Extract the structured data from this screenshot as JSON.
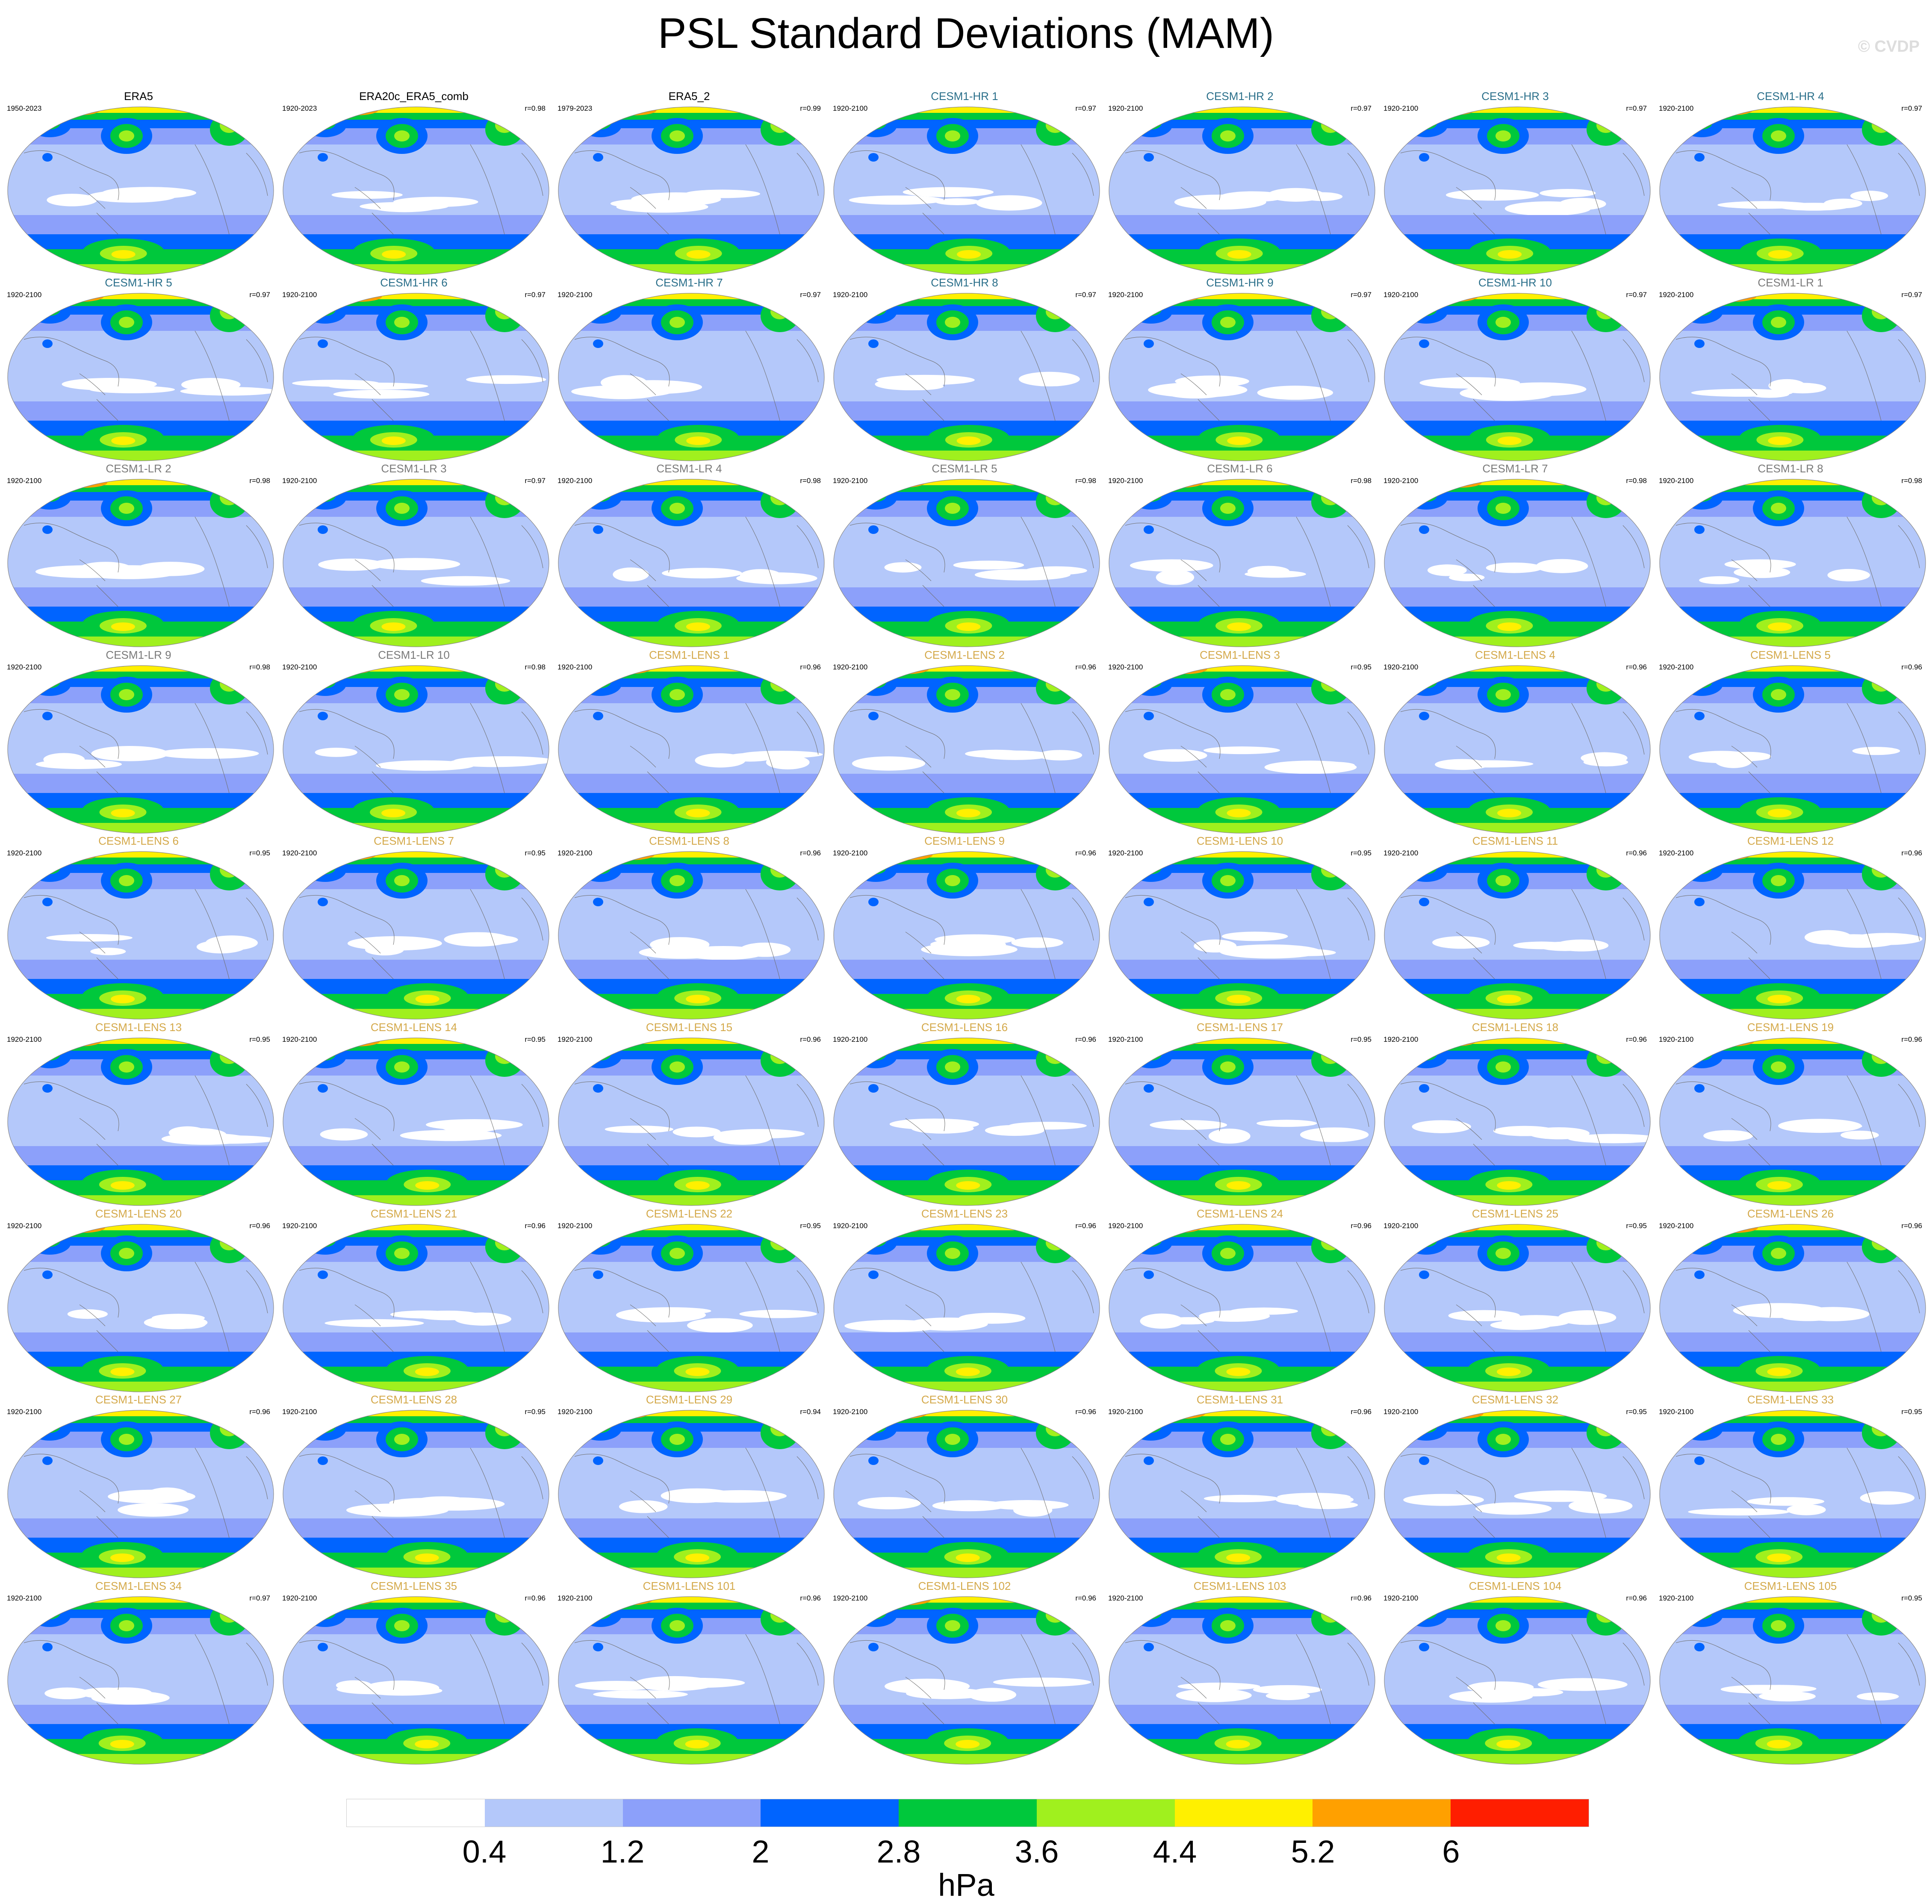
{
  "title": "PSL Standard Deviations (MAM)",
  "watermark": "© CVDP",
  "units": "hPa",
  "colorbar": {
    "colors": [
      "#ffffff",
      "#b4c8fa",
      "#8ca0fa",
      "#0064ff",
      "#00c83c",
      "#a0f01e",
      "#fff000",
      "#ffa000",
      "#ff1e00"
    ],
    "labels": [
      "0.4",
      "1.2",
      "2",
      "2.8",
      "3.6",
      "4.4",
      "5.2",
      "6"
    ]
  },
  "title_colors": {
    "obs": "#000000",
    "hr": "#2a6f8a",
    "lr": "#7a7a7a",
    "lens": "#d4a94a"
  },
  "panels": [
    {
      "name": "ERA5",
      "years": "1950-2023",
      "r": "",
      "group": "obs"
    },
    {
      "name": "ERA20c_ERA5_comb",
      "years": "1920-2023",
      "r": "r=0.98",
      "group": "obs"
    },
    {
      "name": "ERA5_2",
      "years": "1979-2023",
      "r": "r=0.99",
      "group": "obs"
    },
    {
      "name": "CESM1-HR 1",
      "years": "1920-2100",
      "r": "r=0.97",
      "group": "hr"
    },
    {
      "name": "CESM1-HR 2",
      "years": "1920-2100",
      "r": "r=0.97",
      "group": "hr"
    },
    {
      "name": "CESM1-HR 3",
      "years": "1920-2100",
      "r": "r=0.97",
      "group": "hr"
    },
    {
      "name": "CESM1-HR 4",
      "years": "1920-2100",
      "r": "r=0.97",
      "group": "hr"
    },
    {
      "name": "CESM1-HR 5",
      "years": "1920-2100",
      "r": "r=0.97",
      "group": "hr"
    },
    {
      "name": "CESM1-HR 6",
      "years": "1920-2100",
      "r": "r=0.97",
      "group": "hr"
    },
    {
      "name": "CESM1-HR 7",
      "years": "1920-2100",
      "r": "r=0.97",
      "group": "hr"
    },
    {
      "name": "CESM1-HR 8",
      "years": "1920-2100",
      "r": "r=0.97",
      "group": "hr"
    },
    {
      "name": "CESM1-HR 9",
      "years": "1920-2100",
      "r": "r=0.97",
      "group": "hr"
    },
    {
      "name": "CESM1-HR 10",
      "years": "1920-2100",
      "r": "r=0.97",
      "group": "hr"
    },
    {
      "name": "CESM1-LR 1",
      "years": "1920-2100",
      "r": "r=0.97",
      "group": "lr"
    },
    {
      "name": "CESM1-LR 2",
      "years": "1920-2100",
      "r": "r=0.98",
      "group": "lr"
    },
    {
      "name": "CESM1-LR 3",
      "years": "1920-2100",
      "r": "r=0.97",
      "group": "lr"
    },
    {
      "name": "CESM1-LR 4",
      "years": "1920-2100",
      "r": "r=0.98",
      "group": "lr"
    },
    {
      "name": "CESM1-LR 5",
      "years": "1920-2100",
      "r": "r=0.98",
      "group": "lr"
    },
    {
      "name": "CESM1-LR 6",
      "years": "1920-2100",
      "r": "r=0.98",
      "group": "lr"
    },
    {
      "name": "CESM1-LR 7",
      "years": "1920-2100",
      "r": "r=0.98",
      "group": "lr"
    },
    {
      "name": "CESM1-LR 8",
      "years": "1920-2100",
      "r": "r=0.98",
      "group": "lr"
    },
    {
      "name": "CESM1-LR 9",
      "years": "1920-2100",
      "r": "r=0.98",
      "group": "lr"
    },
    {
      "name": "CESM1-LR 10",
      "years": "1920-2100",
      "r": "r=0.98",
      "group": "lr"
    },
    {
      "name": "CESM1-LENS 1",
      "years": "1920-2100",
      "r": "r=0.96",
      "group": "lens"
    },
    {
      "name": "CESM1-LENS 2",
      "years": "1920-2100",
      "r": "r=0.96",
      "group": "lens"
    },
    {
      "name": "CESM1-LENS 3",
      "years": "1920-2100",
      "r": "r=0.95",
      "group": "lens"
    },
    {
      "name": "CESM1-LENS 4",
      "years": "1920-2100",
      "r": "r=0.96",
      "group": "lens"
    },
    {
      "name": "CESM1-LENS 5",
      "years": "1920-2100",
      "r": "r=0.96",
      "group": "lens"
    },
    {
      "name": "CESM1-LENS 6",
      "years": "1920-2100",
      "r": "r=0.95",
      "group": "lens"
    },
    {
      "name": "CESM1-LENS 7",
      "years": "1920-2100",
      "r": "r=0.95",
      "group": "lens"
    },
    {
      "name": "CESM1-LENS 8",
      "years": "1920-2100",
      "r": "r=0.96",
      "group": "lens"
    },
    {
      "name": "CESM1-LENS 9",
      "years": "1920-2100",
      "r": "r=0.96",
      "group": "lens"
    },
    {
      "name": "CESM1-LENS 10",
      "years": "1920-2100",
      "r": "r=0.95",
      "group": "lens"
    },
    {
      "name": "CESM1-LENS 11",
      "years": "1920-2100",
      "r": "r=0.96",
      "group": "lens"
    },
    {
      "name": "CESM1-LENS 12",
      "years": "1920-2100",
      "r": "r=0.96",
      "group": "lens"
    },
    {
      "name": "CESM1-LENS 13",
      "years": "1920-2100",
      "r": "r=0.95",
      "group": "lens"
    },
    {
      "name": "CESM1-LENS 14",
      "years": "1920-2100",
      "r": "r=0.95",
      "group": "lens"
    },
    {
      "name": "CESM1-LENS 15",
      "years": "1920-2100",
      "r": "r=0.96",
      "group": "lens"
    },
    {
      "name": "CESM1-LENS 16",
      "years": "1920-2100",
      "r": "r=0.96",
      "group": "lens"
    },
    {
      "name": "CESM1-LENS 17",
      "years": "1920-2100",
      "r": "r=0.95",
      "group": "lens"
    },
    {
      "name": "CESM1-LENS 18",
      "years": "1920-2100",
      "r": "r=0.96",
      "group": "lens"
    },
    {
      "name": "CESM1-LENS 19",
      "years": "1920-2100",
      "r": "r=0.96",
      "group": "lens"
    },
    {
      "name": "CESM1-LENS 20",
      "years": "1920-2100",
      "r": "r=0.96",
      "group": "lens"
    },
    {
      "name": "CESM1-LENS 21",
      "years": "1920-2100",
      "r": "r=0.96",
      "group": "lens"
    },
    {
      "name": "CESM1-LENS 22",
      "years": "1920-2100",
      "r": "r=0.95",
      "group": "lens"
    },
    {
      "name": "CESM1-LENS 23",
      "years": "1920-2100",
      "r": "r=0.96",
      "group": "lens"
    },
    {
      "name": "CESM1-LENS 24",
      "years": "1920-2100",
      "r": "r=0.96",
      "group": "lens"
    },
    {
      "name": "CESM1-LENS 25",
      "years": "1920-2100",
      "r": "r=0.95",
      "group": "lens"
    },
    {
      "name": "CESM1-LENS 26",
      "years": "1920-2100",
      "r": "r=0.96",
      "group": "lens"
    },
    {
      "name": "CESM1-LENS 27",
      "years": "1920-2100",
      "r": "r=0.96",
      "group": "lens"
    },
    {
      "name": "CESM1-LENS 28",
      "years": "1920-2100",
      "r": "r=0.95",
      "group": "lens"
    },
    {
      "name": "CESM1-LENS 29",
      "years": "1920-2100",
      "r": "r=0.94",
      "group": "lens"
    },
    {
      "name": "CESM1-LENS 30",
      "years": "1920-2100",
      "r": "r=0.96",
      "group": "lens"
    },
    {
      "name": "CESM1-LENS 31",
      "years": "1920-2100",
      "r": "r=0.96",
      "group": "lens"
    },
    {
      "name": "CESM1-LENS 32",
      "years": "1920-2100",
      "r": "r=0.95",
      "group": "lens"
    },
    {
      "name": "CESM1-LENS 33",
      "years": "1920-2100",
      "r": "r=0.95",
      "group": "lens"
    },
    {
      "name": "CESM1-LENS 34",
      "years": "1920-2100",
      "r": "r=0.97",
      "group": "lens"
    },
    {
      "name": "CESM1-LENS 35",
      "years": "1920-2100",
      "r": "r=0.96",
      "group": "lens"
    },
    {
      "name": "CESM1-LENS 101",
      "years": "1920-2100",
      "r": "r=0.96",
      "group": "lens"
    },
    {
      "name": "CESM1-LENS 102",
      "years": "1920-2100",
      "r": "r=0.96",
      "group": "lens"
    },
    {
      "name": "CESM1-LENS 103",
      "years": "1920-2100",
      "r": "r=0.96",
      "group": "lens"
    },
    {
      "name": "CESM1-LENS 104",
      "years": "1920-2100",
      "r": "r=0.96",
      "group": "lens"
    },
    {
      "name": "CESM1-LENS 105",
      "years": "1920-2100",
      "r": "r=0.95",
      "group": "lens"
    }
  ]
}
